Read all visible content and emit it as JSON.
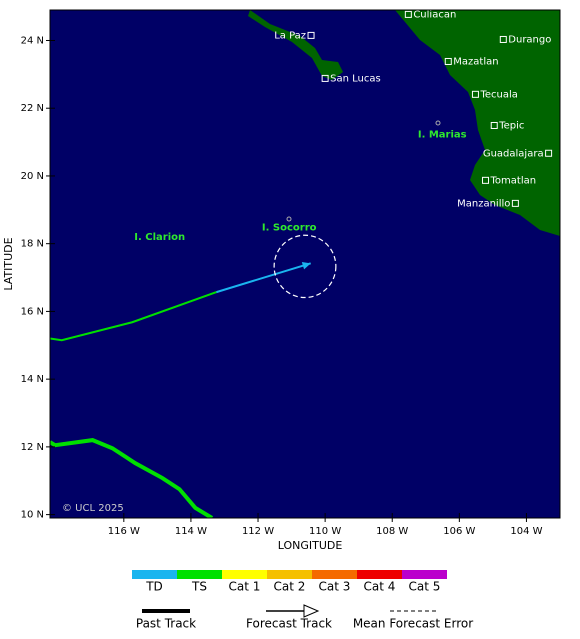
{
  "chart_data": {
    "type": "map",
    "xlabel": "LONGITUDE",
    "ylabel": "LATITUDE",
    "xlim": [
      -118.2,
      -103.0
    ],
    "ylim": [
      9.9,
      24.9
    ],
    "xticks": [
      {
        "value": -116,
        "label": "116 W"
      },
      {
        "value": -114,
        "label": "114 W"
      },
      {
        "value": -112,
        "label": "112 W"
      },
      {
        "value": -110,
        "label": "110 W"
      },
      {
        "value": -108,
        "label": "108 W"
      },
      {
        "value": -106,
        "label": "106 W"
      },
      {
        "value": -104,
        "label": "104 W"
      }
    ],
    "yticks": [
      {
        "value": 10,
        "label": "10 N"
      },
      {
        "value": 12,
        "label": "12 N"
      },
      {
        "value": 14,
        "label": "14 N"
      },
      {
        "value": 16,
        "label": "16 N"
      },
      {
        "value": 18,
        "label": "18 N"
      },
      {
        "value": 20,
        "label": "20 N"
      },
      {
        "value": 22,
        "label": "22 N"
      },
      {
        "value": 24,
        "label": "24 N"
      }
    ],
    "ocean_color": "#000066",
    "land_color": "#006400",
    "places": [
      {
        "label": "Culiacan",
        "lon": -107.52,
        "lat": 24.77
      },
      {
        "label": "La Paz",
        "lon": -110.42,
        "lat": 24.15
      },
      {
        "label": "San Lucas",
        "lon": -110.0,
        "lat": 22.88
      },
      {
        "label": "Durango",
        "lon": -104.69,
        "lat": 24.03
      },
      {
        "label": "Mazatlan",
        "lon": -106.33,
        "lat": 23.38
      },
      {
        "label": "Tecuala",
        "lon": -105.52,
        "lat": 22.41
      },
      {
        "label": "Tepic",
        "lon": -104.96,
        "lat": 21.49
      },
      {
        "label": "Guadalajara",
        "lon": -103.34,
        "lat": 20.67
      },
      {
        "label": "Tomatlan",
        "lon": -105.22,
        "lat": 19.87
      },
      {
        "label": "Manzanillo",
        "lon": -104.33,
        "lat": 19.19
      }
    ],
    "islands": [
      {
        "label": "I. Marias",
        "lon": -106.51,
        "lat": 21.23
      },
      {
        "label": "I. Socorro",
        "lon": -111.07,
        "lat": 18.48
      },
      {
        "label": "I. Clarion",
        "lon": -114.93,
        "lat": 18.19
      }
    ],
    "tracks": [
      {
        "color": "#00e000",
        "lon": [
          -118.2,
          -117.85,
          -115.75,
          -113.24
        ],
        "lat": [
          15.2,
          15.15,
          15.68,
          16.57
        ]
      },
      {
        "color": "#1ab5ef",
        "lon": [
          -113.24,
          -110.43
        ],
        "lat": [
          16.57,
          17.42
        ]
      },
      {
        "color": "#00e000",
        "lon": [
          -118.2,
          -118.05,
          -116.93,
          -116.34,
          -115.66,
          -114.85,
          -114.34,
          -113.87,
          -113.37
        ],
        "lat": [
          12.14,
          12.05,
          12.2,
          11.96,
          11.52,
          11.08,
          10.75,
          10.2,
          9.9
        ]
      }
    ],
    "error_circle": {
      "lon": -110.6,
      "lat": 17.33,
      "radius": 0.92
    },
    "copyright": "© UCL 2025",
    "legend": {
      "categories": [
        {
          "label": "TD",
          "color": "#1ab5ef"
        },
        {
          "label": "TS",
          "color": "#00e000"
        },
        {
          "label": "Cat 1",
          "color": "#ffff00"
        },
        {
          "label": "Cat 2",
          "color": "#f5c000"
        },
        {
          "label": "Cat 3",
          "color": "#f56a00"
        },
        {
          "label": "Cat 4",
          "color": "#ee0000"
        },
        {
          "label": "Cat 5",
          "color": "#bb00cc"
        }
      ],
      "lines": [
        "Past Track",
        "Forecast Track",
        "Mean Forecast Error"
      ]
    }
  }
}
